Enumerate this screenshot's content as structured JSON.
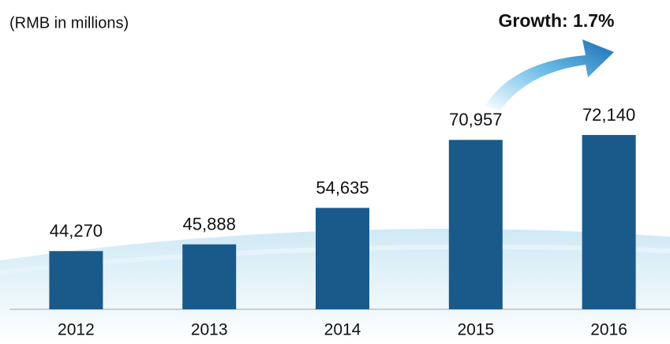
{
  "chart_data": {
    "type": "bar",
    "unit_note": "(RMB in millions)",
    "annotation": "Growth: 1.7%",
    "categories": [
      "2012",
      "2013",
      "2014",
      "2015",
      "2016"
    ],
    "values": [
      44270,
      45888,
      54635,
      70957,
      72140
    ],
    "value_labels": [
      "44,270",
      "45,888",
      "54,635",
      "70,957",
      "72,140"
    ],
    "color": "#1a5a8a",
    "ylim": [
      30300,
      85600
    ]
  }
}
